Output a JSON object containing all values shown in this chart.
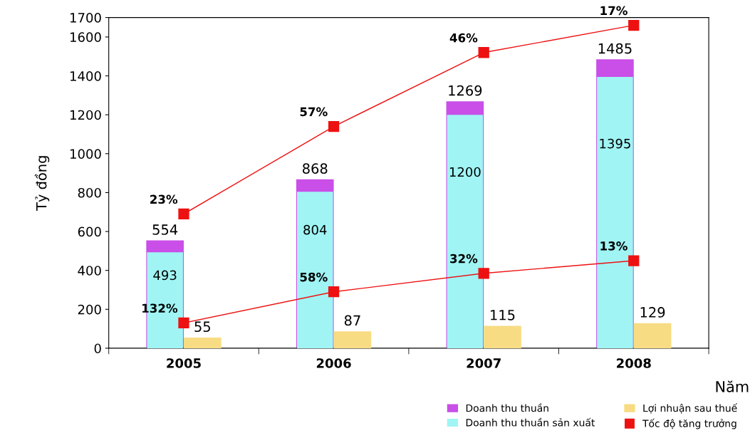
{
  "chart_data": {
    "type": "bar",
    "categories": [
      "2005",
      "2006",
      "2007",
      "2008"
    ],
    "xlabel": "Năm",
    "ylabel": "Tỷ đồng",
    "ylim": [
      0,
      1700
    ],
    "yticks": [
      0,
      200,
      400,
      600,
      800,
      1000,
      1200,
      1400,
      1600,
      1700
    ],
    "grid": false,
    "legend": "bottom right",
    "series": [
      {
        "name": "Doanh thu thuần",
        "color": "#c94fe8",
        "values": [
          554,
          868,
          1269,
          1485
        ],
        "value_labels": [
          "554",
          "868",
          "1269",
          "1485"
        ]
      },
      {
        "name": "Doanh thu thuần sản xuất",
        "color": "#a0f4f4",
        "values": [
          493,
          804,
          1200,
          1395
        ],
        "value_labels": [
          "493",
          "804",
          "1200",
          "1395"
        ]
      },
      {
        "name": "Lợi nhuận sau thuế",
        "color": "#f8dc84",
        "values": [
          55,
          87,
          115,
          129
        ],
        "value_labels": [
          "55",
          "87",
          "115",
          "129"
        ]
      },
      {
        "name": "Tốc độ tăng trưởng",
        "type": "line",
        "color": "#ee1111",
        "marker": "square",
        "values": [
          690,
          1140,
          1520,
          1660
        ]
      },
      {
        "type": "line",
        "color": "#ee1111",
        "marker": "square",
        "values": [
          130,
          290,
          385,
          450
        ]
      }
    ],
    "annotations": [
      {
        "text": "23%",
        "x": "2005",
        "y": 690
      },
      {
        "text": "57%",
        "x": "2006",
        "y": 1140
      },
      {
        "text": "46%",
        "x": "2007",
        "y": 1520
      },
      {
        "text": "17%",
        "x": "2008",
        "y": 1660
      },
      {
        "text": "132%",
        "x": "2005",
        "y": 130
      },
      {
        "text": "58%",
        "x": "2006",
        "y": 290
      },
      {
        "text": "32%",
        "x": "2007",
        "y": 385
      },
      {
        "text": "13%",
        "x": "2008",
        "y": 450
      }
    ]
  }
}
